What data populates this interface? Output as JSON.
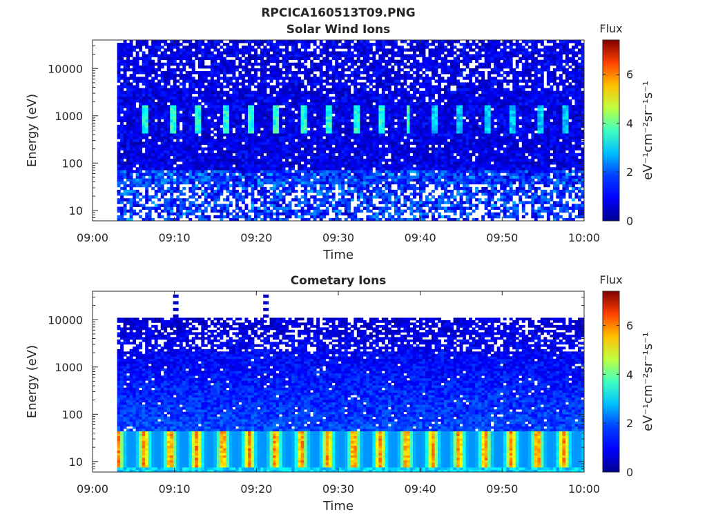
{
  "figure": {
    "title": "RPCICA160513T09.PNG"
  },
  "colors": {
    "axis": "#262626",
    "colormap": [
      "#00008f",
      "#0000ff",
      "#0080ff",
      "#00ffff",
      "#80ff80",
      "#ffff00",
      "#ff8000",
      "#ff0000",
      "#800000"
    ]
  },
  "chart_data": [
    {
      "type": "heatmap",
      "title": "Solar Wind Ions",
      "xlabel": "Time",
      "ylabel": "Energy (eV)",
      "x_ticks": [
        "09:00",
        "09:10",
        "09:20",
        "09:30",
        "09:40",
        "09:50",
        "10:00"
      ],
      "xlim": [
        "09:00",
        "10:00"
      ],
      "y_scale": "log",
      "ylim": [
        6,
        40000
      ],
      "y_ticks": [
        10,
        100,
        1000,
        10000
      ],
      "y_tick_labels": [
        "10",
        "100",
        "1000",
        "10000"
      ],
      "data_start": "09:03",
      "data_end": "10:00",
      "data_top_energy": 40000,
      "colorbar": {
        "title": "Flux",
        "label": "eV⁻¹cm⁻²sr⁻¹s⁻¹",
        "range": [
          0,
          7.4
        ],
        "ticks": [
          0,
          2,
          4,
          6
        ],
        "tick_labels": [
          "0",
          "2",
          "4",
          "6"
        ]
      },
      "features": [
        {
          "description": "periodic bursts near 1000 eV",
          "energy_range": [
            450,
            1600
          ],
          "peak_flux": 3.5,
          "period_minutes": 3.2,
          "duration_minutes": 0.7,
          "first": "09:06"
        },
        {
          "description": "low energy patchy population",
          "energy_range": [
            6,
            30
          ],
          "peak_flux": 2.5
        }
      ]
    },
    {
      "type": "heatmap",
      "title": "Cometary Ions",
      "xlabel": "Time",
      "ylabel": "Energy (eV)",
      "x_ticks": [
        "09:00",
        "09:10",
        "09:20",
        "09:30",
        "09:40",
        "09:50",
        "10:00"
      ],
      "xlim": [
        "09:00",
        "10:00"
      ],
      "y_scale": "log",
      "ylim": [
        6,
        40000
      ],
      "y_ticks": [
        10,
        100,
        1000,
        10000
      ],
      "y_tick_labels": [
        "10",
        "100",
        "1000",
        "10000"
      ],
      "data_start": "09:03",
      "data_end": "10:00",
      "data_top_energy": 11000,
      "colorbar": {
        "title": "Flux",
        "label": "eV⁻¹cm⁻²sr⁻¹s⁻¹",
        "range": [
          0,
          7.4
        ],
        "ticks": [
          0,
          2,
          4,
          6
        ],
        "tick_labels": [
          "0",
          "2",
          "4",
          "6"
        ]
      },
      "features": [
        {
          "description": "periodic low energy bursts",
          "energy_range": [
            8,
            40
          ],
          "peak_flux": 6.0,
          "period_minutes": 3.2,
          "first": "09:05"
        },
        {
          "description": "high energy spikes",
          "times": [
            "09:10",
            "09:21"
          ],
          "energy_range": [
            11000,
            40000
          ],
          "peak_flux": 0.5
        }
      ]
    }
  ]
}
